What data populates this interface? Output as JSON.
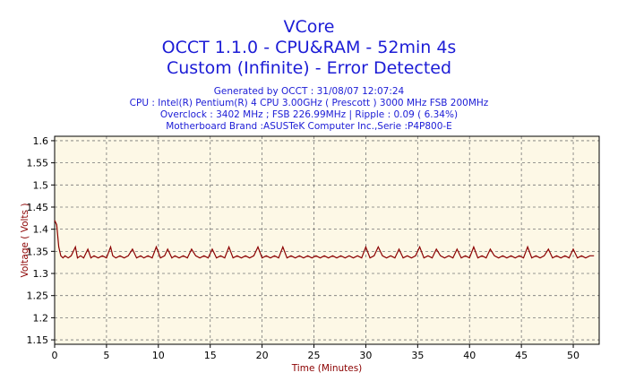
{
  "header": {
    "title_line1": "VCore",
    "title_line2": "OCCT 1.1.0 - CPU&RAM - 52min 4s",
    "title_line3": "Custom (Infinite) - Error Detected",
    "info_generated": "Generated by OCCT : 31/08/07 12:07:24",
    "info_cpu": "CPU : Intel(R) Pentium(R) 4 CPU 3.00GHz ( Prescott ) 3000 MHz FSB 200MHz",
    "info_overclock": "Overclock : 3402 MHz ; FSB 226.99MHz | Ripple : 0.09 ( 6.34%)",
    "info_motherboard": "Motherboard Brand :ASUSTeK Computer Inc.,Serie :P4P800-E"
  },
  "chart_data": {
    "type": "line",
    "xlabel": "Time (Minutes)",
    "ylabel": "Voltage ( Volts )",
    "xlim": [
      0,
      52.5
    ],
    "ylim": [
      1.14,
      1.61
    ],
    "x_ticks": [
      0,
      5,
      10,
      15,
      20,
      25,
      30,
      35,
      40,
      45,
      50
    ],
    "y_ticks": [
      1.15,
      1.2,
      1.25,
      1.3,
      1.35,
      1.4,
      1.45,
      1.5,
      1.55,
      1.6
    ],
    "y_tick_labels": [
      "1.15",
      "1.2",
      "1.25",
      "1.3",
      "1.35",
      "1.4",
      "1.45",
      "1.5",
      "1.55",
      "1.6"
    ],
    "x_tick_labels": [
      "0",
      "5",
      "10",
      "15",
      "20",
      "25",
      "30",
      "35",
      "40",
      "45",
      "50"
    ],
    "grid": true,
    "colors": {
      "plot_background": "#fdf8e6",
      "series_line": "#8b0000",
      "axis_label": "#8b0000",
      "title": "#1c1cd6",
      "grid": "#777777"
    },
    "series": [
      {
        "values_x": [
          0.0,
          0.2,
          0.4,
          0.6,
          0.8,
          1.0,
          1.3,
          1.6,
          2.0,
          2.2,
          2.5,
          2.8,
          3.2,
          3.5,
          3.8,
          4.2,
          4.6,
          5.0,
          5.4,
          5.6,
          5.9,
          6.3,
          6.7,
          7.1,
          7.5,
          7.9,
          8.3,
          8.6,
          9.0,
          9.4,
          9.8,
          10.2,
          10.6,
          10.9,
          11.3,
          11.6,
          12.0,
          12.4,
          12.8,
          13.2,
          13.6,
          14.0,
          14.4,
          14.8,
          15.2,
          15.6,
          16.0,
          16.4,
          16.8,
          17.2,
          17.6,
          18.0,
          18.4,
          18.8,
          19.2,
          19.6,
          20.0,
          20.4,
          20.8,
          21.2,
          21.6,
          22.0,
          22.4,
          22.8,
          23.2,
          23.6,
          24.0,
          24.4,
          24.8,
          25.2,
          25.6,
          26.0,
          26.4,
          26.8,
          27.2,
          27.6,
          28.0,
          28.4,
          28.8,
          29.2,
          29.6,
          30.0,
          30.4,
          30.8,
          31.2,
          31.6,
          32.0,
          32.4,
          32.8,
          33.2,
          33.6,
          34.0,
          34.4,
          34.8,
          35.2,
          35.6,
          36.0,
          36.4,
          36.8,
          37.2,
          37.6,
          38.0,
          38.4,
          38.8,
          39.2,
          39.6,
          40.0,
          40.4,
          40.8,
          41.2,
          41.6,
          42.0,
          42.4,
          42.8,
          43.2,
          43.6,
          44.0,
          44.4,
          44.8,
          45.2,
          45.6,
          46.0,
          46.4,
          46.8,
          47.2,
          47.6,
          48.0,
          48.4,
          48.8,
          49.2,
          49.6,
          50.0,
          50.4,
          50.8,
          51.2,
          51.6,
          52.0
        ],
        "values_y": [
          1.42,
          1.41,
          1.36,
          1.34,
          1.335,
          1.34,
          1.335,
          1.34,
          1.36,
          1.335,
          1.34,
          1.335,
          1.355,
          1.335,
          1.34,
          1.335,
          1.34,
          1.335,
          1.36,
          1.34,
          1.335,
          1.34,
          1.335,
          1.34,
          1.355,
          1.335,
          1.34,
          1.335,
          1.34,
          1.335,
          1.36,
          1.335,
          1.34,
          1.355,
          1.335,
          1.34,
          1.335,
          1.34,
          1.335,
          1.355,
          1.34,
          1.335,
          1.34,
          1.335,
          1.355,
          1.335,
          1.34,
          1.335,
          1.36,
          1.335,
          1.34,
          1.335,
          1.34,
          1.335,
          1.34,
          1.36,
          1.335,
          1.34,
          1.335,
          1.34,
          1.335,
          1.36,
          1.335,
          1.34,
          1.335,
          1.34,
          1.335,
          1.34,
          1.335,
          1.34,
          1.335,
          1.34,
          1.335,
          1.34,
          1.335,
          1.34,
          1.335,
          1.34,
          1.335,
          1.34,
          1.335,
          1.36,
          1.335,
          1.34,
          1.36,
          1.34,
          1.335,
          1.34,
          1.335,
          1.355,
          1.335,
          1.34,
          1.335,
          1.34,
          1.36,
          1.335,
          1.34,
          1.335,
          1.355,
          1.34,
          1.335,
          1.34,
          1.335,
          1.355,
          1.335,
          1.34,
          1.335,
          1.36,
          1.335,
          1.34,
          1.335,
          1.355,
          1.34,
          1.335,
          1.34,
          1.335,
          1.34,
          1.335,
          1.34,
          1.335,
          1.36,
          1.335,
          1.34,
          1.335,
          1.34,
          1.355,
          1.335,
          1.34,
          1.335,
          1.34,
          1.335,
          1.355,
          1.335,
          1.34,
          1.335,
          1.34,
          1.34
        ]
      }
    ]
  }
}
